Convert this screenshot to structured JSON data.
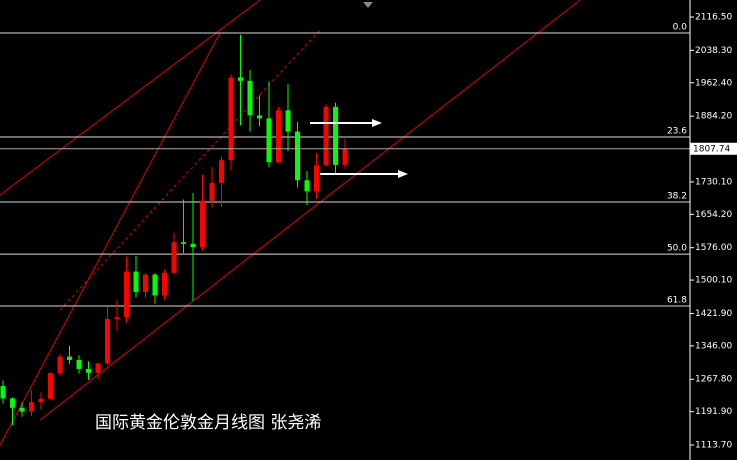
{
  "chart_data": {
    "type": "candlestick",
    "title": "国际黄金伦敦金月线图  张尧浠",
    "open": [
      1252,
      1223,
      1201,
      1192,
      1214,
      1222,
      1282,
      1321,
      1313,
      1292,
      1283,
      1305,
      1409,
      1413,
      1520,
      1472,
      1513,
      1464,
      1517,
      1589,
      1585,
      1577,
      1686,
      1728,
      1781,
      1975,
      1967,
      1886,
      1879,
      1776,
      1898,
      1848,
      1734,
      1708,
      1769,
      1906,
      1770
    ],
    "high": [
      1265,
      1225,
      1214,
      1243,
      1237,
      1284,
      1326,
      1346,
      1324,
      1310,
      1306,
      1439,
      1453,
      1555,
      1557,
      1517,
      1516,
      1525,
      1611,
      1689,
      1704,
      1747,
      1765,
      1789,
      1983,
      2075,
      1992,
      1933,
      1965,
      1906,
      1959,
      1871,
      1755,
      1798,
      1913,
      1916,
      1832
    ],
    "low": [
      1211,
      1160,
      1180,
      1182,
      1196,
      1221,
      1275,
      1303,
      1281,
      1266,
      1266,
      1301,
      1381,
      1400,
      1459,
      1459,
      1445,
      1454,
      1517,
      1563,
      1451,
      1568,
      1670,
      1671,
      1757,
      1863,
      1848,
      1860,
      1764,
      1775,
      1802,
      1717,
      1676,
      1690,
      1766,
      1750,
      1761
    ],
    "close": [
      1223,
      1201,
      1192,
      1214,
      1222,
      1282,
      1321,
      1313,
      1292,
      1283,
      1305,
      1409,
      1413,
      1520,
      1472,
      1513,
      1464,
      1517,
      1589,
      1585,
      1577,
      1686,
      1728,
      1781,
      1975,
      1967,
      1886,
      1879,
      1776,
      1898,
      1848,
      1734,
      1708,
      1769,
      1906,
      1770,
      1807.74
    ],
    "up_color": "#ff0000",
    "down_color": "#00ff00",
    "ylim": [
      1078.6,
      2156.3
    ],
    "yticks": [
      {
        "value": 2116.5,
        "label": "2116.50"
      },
      {
        "value": 2038.3,
        "label": "2038.30"
      },
      {
        "value": 1962.4,
        "label": "1962.40"
      },
      {
        "value": 1884.2,
        "label": "1884.20"
      },
      {
        "value": 1730.1,
        "label": "1730.10"
      },
      {
        "value": 1654.2,
        "label": "1654.20"
      },
      {
        "value": 1576,
        "label": "1576.00"
      },
      {
        "value": 1500.1,
        "label": "1500.10"
      },
      {
        "value": 1421.9,
        "label": "1421.90"
      },
      {
        "value": 1346,
        "label": "1346.00"
      },
      {
        "value": 1267.8,
        "label": "1267.80"
      },
      {
        "value": 1191.9,
        "label": "1191.90"
      },
      {
        "value": 1113.7,
        "label": "1113.70"
      }
    ],
    "fib_levels": [
      {
        "value": 2079,
        "label": "0.0"
      },
      {
        "value": 1835.3,
        "label": "23.6"
      },
      {
        "value": 1683,
        "label": "38.2"
      },
      {
        "value": 1561,
        "label": "50.0"
      },
      {
        "value": 1439.4,
        "label": "61.8"
      }
    ]
  }
}
